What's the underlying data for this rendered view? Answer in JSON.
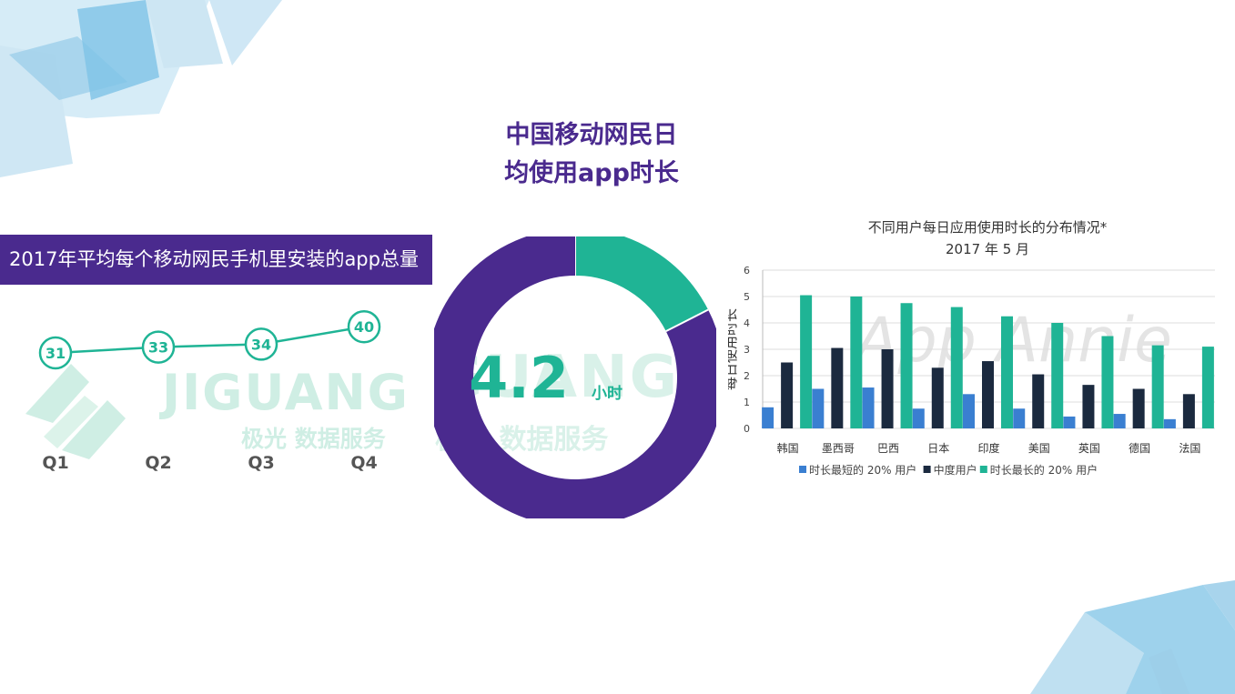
{
  "colors": {
    "purple": "#4a2a8e",
    "teal": "#1fb495",
    "blue": "#3a7fd1",
    "navy": "#1b2a3f",
    "deco_blue": "#6ec1e4"
  },
  "watermark": {
    "brand": "JIGUANG",
    "brand_partial": "GUANG",
    "subtitle": "极光 数据服务",
    "appannie": "App Annie"
  },
  "left_panel": {
    "title": "2017年平均每个移动网民手机里安装的app总量"
  },
  "center_panel": {
    "title_line1": "中国移动网民日",
    "title_line2": "均使用app时长",
    "value": "4.2",
    "unit": "小时"
  },
  "right_panel": {
    "title_line1": "不同用户每日应用使用时长的分布情况*",
    "title_line2": "2017 年 5 月"
  },
  "chart_data": [
    {
      "type": "line",
      "categories": [
        "Q1",
        "Q2",
        "Q3",
        "Q4"
      ],
      "values": [
        31,
        33,
        34,
        40
      ],
      "title": "2017年平均每个移动网民手机里安装的app总量"
    },
    {
      "type": "pie",
      "value": 4.2,
      "unit": "小时",
      "slices": [
        {
          "label": "",
          "fraction": 0.175,
          "color": "#1fb495"
        },
        {
          "label": "",
          "fraction": 0.825,
          "color": "#4a2a8e"
        }
      ],
      "title": "中国移动网民日均使用app时长"
    },
    {
      "type": "bar",
      "title": "不同用户每日应用使用时长的分布情况*",
      "subtitle": "2017 年 5 月",
      "ylabel": "每日使用时长",
      "ylim": [
        0,
        6
      ],
      "yticks": [
        "0",
        "1",
        "2",
        "3",
        "4",
        "5",
        "6"
      ],
      "categories": [
        "韩国",
        "墨西哥",
        "巴西",
        "日本",
        "印度",
        "美国",
        "英国",
        "德国",
        "法国"
      ],
      "series": [
        {
          "name": "时长最短的 20% 用户",
          "color": "#3a7fd1",
          "values": [
            0.8,
            1.5,
            1.55,
            0.75,
            1.3,
            0.75,
            0.45,
            0.55,
            0.35
          ]
        },
        {
          "name": "中度用户",
          "color": "#1b2a3f",
          "values": [
            2.5,
            3.05,
            3.0,
            2.3,
            2.55,
            2.05,
            1.65,
            1.5,
            1.3
          ]
        },
        {
          "name": "时长最长的 20% 用户",
          "color": "#1fb495",
          "values": [
            5.05,
            5.0,
            4.75,
            4.6,
            4.25,
            4.0,
            3.5,
            3.15,
            3.1
          ]
        }
      ],
      "legend": "bottom"
    }
  ]
}
